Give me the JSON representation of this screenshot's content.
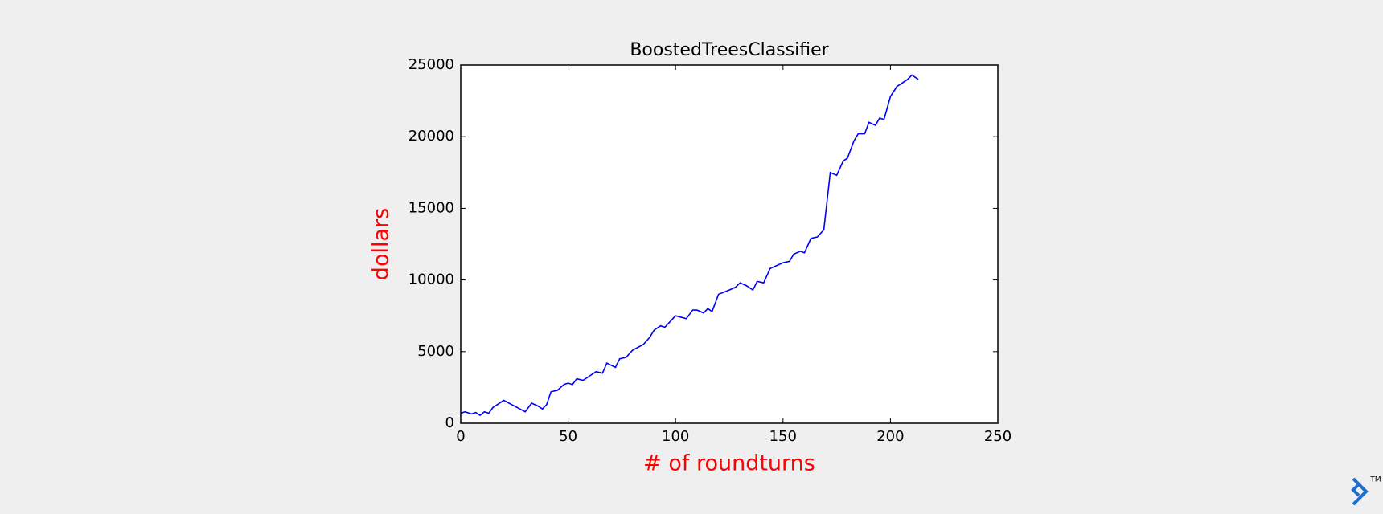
{
  "chart_data": {
    "type": "line",
    "title": "BoostedTreesClassifier",
    "x_label": "# of roundturns",
    "y_label": "dollars",
    "x": [
      0,
      2,
      5,
      7,
      9,
      11,
      13,
      15,
      18,
      20,
      25,
      30,
      33,
      36,
      38,
      40,
      42,
      45,
      48,
      50,
      52,
      54,
      57,
      60,
      63,
      66,
      68,
      72,
      74,
      77,
      80,
      85,
      88,
      90,
      93,
      95,
      100,
      105,
      108,
      110,
      113,
      115,
      117,
      120,
      125,
      128,
      130,
      133,
      136,
      138,
      141,
      144,
      147,
      150,
      153,
      155,
      158,
      160,
      163,
      166,
      169,
      172,
      175,
      178,
      180,
      183,
      185,
      188,
      190,
      193,
      195,
      197,
      200,
      203,
      205,
      208,
      210,
      212,
      213
    ],
    "series": [
      {
        "name": "dollars",
        "color": "#0000ff",
        "values": [
          700,
          800,
          650,
          750,
          550,
          800,
          700,
          1100,
          1400,
          1600,
          1200,
          800,
          1400,
          1200,
          1000,
          1300,
          2200,
          2300,
          2700,
          2800,
          2700,
          3100,
          3000,
          3300,
          3600,
          3500,
          4200,
          3900,
          4500,
          4600,
          5100,
          5500,
          6000,
          6500,
          6800,
          6700,
          7500,
          7300,
          7900,
          7900,
          7700,
          8000,
          7800,
          9000,
          9300,
          9500,
          9800,
          9600,
          9300,
          9900,
          9800,
          10800,
          11000,
          11200,
          11300,
          11800,
          12000,
          11900,
          12900,
          13000,
          13500,
          17500,
          17300,
          18300,
          18500,
          19700,
          20200,
          20200,
          21000,
          20800,
          21300,
          21200,
          22800,
          23500,
          23700,
          24000,
          24300,
          24100,
          24000
        ]
      }
    ],
    "xlim": [
      0,
      250
    ],
    "xticks": [
      0,
      50,
      100,
      150,
      200,
      250
    ],
    "ylim": [
      0,
      25000
    ],
    "yticks": [
      0,
      5000,
      10000,
      15000,
      20000,
      25000
    ],
    "grid": false
  },
  "logo": {
    "mark": "TM"
  }
}
